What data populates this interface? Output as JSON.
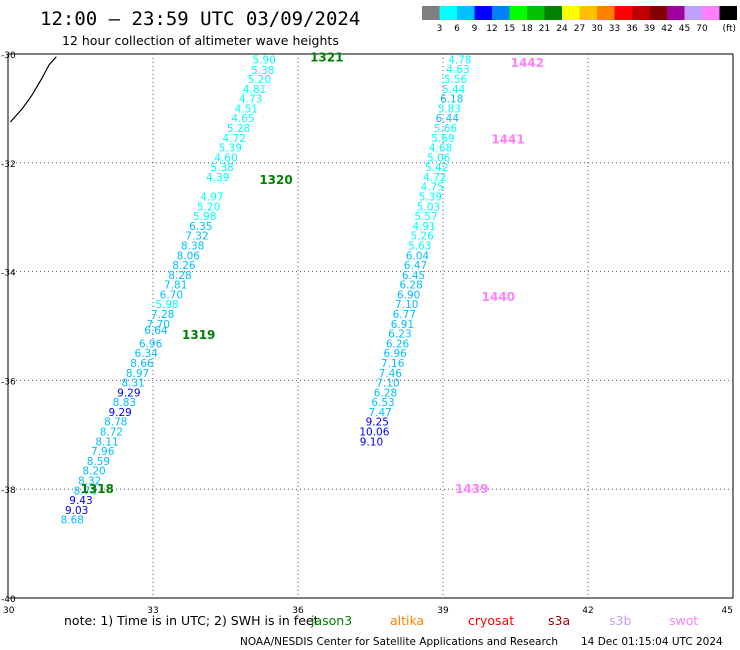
{
  "header": {
    "title": "12:00 — 23:59 UTC 03/09/2024",
    "subtitle": "12 hour collection of altimeter wave heights"
  },
  "legend": {
    "colors": [
      "#7f7f7f",
      "#00ffff",
      "#00c0ff",
      "#0000ff",
      "#0080ff",
      "#00ff00",
      "#00c000",
      "#008000",
      "#ffff00",
      "#ffc000",
      "#ff8000",
      "#ff0000",
      "#c00000",
      "#800000",
      "#a000a0",
      "#c0a0ff",
      "#ff80ff",
      "#000000"
    ],
    "labels": [
      "3",
      "6",
      "9",
      "12",
      "15",
      "18",
      "21",
      "24",
      "27",
      "30",
      "33",
      "36",
      "39",
      "42",
      "45",
      "70",
      "(ft)"
    ]
  },
  "note": "note:  1) Time is in UTC;  2) SWH is in feet",
  "satellites": [
    {
      "name": "jason3",
      "color": "#008000"
    },
    {
      "name": "altika",
      "color": "#ff8000"
    },
    {
      "name": "cryosat",
      "color": "#ff0000"
    },
    {
      "name": "s3a",
      "color": "#a00000"
    },
    {
      "name": "s3b",
      "color": "#c0a0ff"
    },
    {
      "name": "swot",
      "color": "#ff80ff"
    }
  ],
  "footer": {
    "credit": "NOAA/NESDIS Center for Satellite Applications and Research",
    "timestamp": "14 Dec 01:15:04 UTC 2024"
  },
  "chart_data": {
    "type": "scatter",
    "xlim": [
      30,
      45
    ],
    "ylim": [
      -40,
      -30
    ],
    "xticks": [
      "30",
      "33",
      "36",
      "39",
      "42",
      "45"
    ],
    "yticks": [
      "-30",
      "-32",
      "-34",
      "-36",
      "-38",
      "-40"
    ],
    "grid": true,
    "coastline": [
      [
        30.05,
        -31.25
      ],
      [
        30.3,
        -31.0
      ],
      [
        30.5,
        -30.75
      ],
      [
        30.7,
        -30.45
      ],
      [
        30.85,
        -30.2
      ],
      [
        31.0,
        -30.05
      ]
    ],
    "series": [
      {
        "name": "jason3",
        "color_values": true,
        "points": [
          {
            "lon": 35.3,
            "lat": -30.1,
            "v": "5.90"
          },
          {
            "lon": 35.27,
            "lat": -30.29,
            "v": "5.38"
          },
          {
            "lon": 35.2,
            "lat": -30.46,
            "v": "5.20"
          },
          {
            "lon": 35.1,
            "lat": -30.64,
            "v": "4.81"
          },
          {
            "lon": 35.02,
            "lat": -30.82,
            "v": "4.73"
          },
          {
            "lon": 34.93,
            "lat": -31.0,
            "v": "4.51"
          },
          {
            "lon": 34.86,
            "lat": -31.18,
            "v": "4.65"
          },
          {
            "lon": 34.77,
            "lat": -31.36,
            "v": "5.28"
          },
          {
            "lon": 34.68,
            "lat": -31.54,
            "v": "4.72"
          },
          {
            "lon": 34.6,
            "lat": -31.72,
            "v": "5.39"
          },
          {
            "lon": 34.51,
            "lat": -31.9,
            "v": "4.60"
          },
          {
            "lon": 34.43,
            "lat": -32.08,
            "v": "5.38"
          },
          {
            "lon": 34.34,
            "lat": -32.26,
            "v": "4.39"
          },
          {
            "lon": 34.22,
            "lat": -32.62,
            "v": "4.97"
          },
          {
            "lon": 34.15,
            "lat": -32.8,
            "v": "5.20"
          },
          {
            "lon": 34.07,
            "lat": -32.98,
            "v": "5.98"
          },
          {
            "lon": 33.99,
            "lat": -33.16,
            "v": "6.35"
          },
          {
            "lon": 33.91,
            "lat": -33.34,
            "v": "7.32"
          },
          {
            "lon": 33.82,
            "lat": -33.52,
            "v": "8.38"
          },
          {
            "lon": 33.73,
            "lat": -33.7,
            "v": "8.06"
          },
          {
            "lon": 33.64,
            "lat": -33.88,
            "v": "8.26"
          },
          {
            "lon": 33.56,
            "lat": -34.06,
            "v": "8.28"
          },
          {
            "lon": 33.47,
            "lat": -34.24,
            "v": "7.81"
          },
          {
            "lon": 33.38,
            "lat": -34.42,
            "v": "6.70"
          },
          {
            "lon": 33.29,
            "lat": -34.6,
            "v": "5.98"
          },
          {
            "lon": 33.2,
            "lat": -34.78,
            "v": "7.28"
          },
          {
            "lon": 33.11,
            "lat": -34.96,
            "v": "7.70"
          },
          {
            "lon": 33.06,
            "lat": -35.07,
            "v": "6.64"
          },
          {
            "lon": 32.95,
            "lat": -35.32,
            "v": "6.96"
          },
          {
            "lon": 32.86,
            "lat": -35.5,
            "v": "6.34"
          },
          {
            "lon": 32.77,
            "lat": -35.68,
            "v": "8.66"
          },
          {
            "lon": 32.68,
            "lat": -35.86,
            "v": "8.97"
          },
          {
            "lon": 32.59,
            "lat": -36.04,
            "v": "8.31"
          },
          {
            "lon": 32.5,
            "lat": -36.22,
            "v": "9.29"
          },
          {
            "lon": 32.41,
            "lat": -36.4,
            "v": "8.83"
          },
          {
            "lon": 32.32,
            "lat": -36.58,
            "v": "9.29"
          },
          {
            "lon": 32.23,
            "lat": -36.76,
            "v": "8.78"
          },
          {
            "lon": 32.14,
            "lat": -36.94,
            "v": "8.72"
          },
          {
            "lon": 32.05,
            "lat": -37.12,
            "v": "8.11"
          },
          {
            "lon": 31.96,
            "lat": -37.3,
            "v": "7.96"
          },
          {
            "lon": 31.87,
            "lat": -37.48,
            "v": "8.59"
          },
          {
            "lon": 31.78,
            "lat": -37.66,
            "v": "8.20"
          },
          {
            "lon": 31.69,
            "lat": -37.84,
            "v": "8.32"
          },
          {
            "lon": 31.6,
            "lat": -38.02,
            "v": "8.73"
          },
          {
            "lon": 31.51,
            "lat": -38.2,
            "v": "9.43"
          },
          {
            "lon": 31.42,
            "lat": -38.38,
            "v": "9.03"
          },
          {
            "lon": 31.33,
            "lat": -38.56,
            "v": "8.68"
          }
        ]
      },
      {
        "name": "swot",
        "color_values": true,
        "points": [
          {
            "lon": 39.35,
            "lat": -30.1,
            "v": "4.78"
          },
          {
            "lon": 39.31,
            "lat": -30.28,
            "v": "4.63"
          },
          {
            "lon": 39.26,
            "lat": -30.46,
            "v": "5.56"
          },
          {
            "lon": 39.22,
            "lat": -30.64,
            "v": "5.44"
          },
          {
            "lon": 39.18,
            "lat": -30.82,
            "v": "6.18"
          },
          {
            "lon": 39.13,
            "lat": -31.0,
            "v": "5.83"
          },
          {
            "lon": 39.09,
            "lat": -31.18,
            "v": "6.44"
          },
          {
            "lon": 39.05,
            "lat": -31.36,
            "v": "5.66"
          },
          {
            "lon": 39.0,
            "lat": -31.54,
            "v": "5.69"
          },
          {
            "lon": 38.95,
            "lat": -31.72,
            "v": "4.68"
          },
          {
            "lon": 38.91,
            "lat": -31.9,
            "v": "5.06"
          },
          {
            "lon": 38.87,
            "lat": -32.08,
            "v": "5.42"
          },
          {
            "lon": 38.83,
            "lat": -32.26,
            "v": "4.72"
          },
          {
            "lon": 38.78,
            "lat": -32.44,
            "v": "4.75"
          },
          {
            "lon": 38.74,
            "lat": -32.62,
            "v": "5.39"
          },
          {
            "lon": 38.7,
            "lat": -32.8,
            "v": "5.03"
          },
          {
            "lon": 38.65,
            "lat": -32.98,
            "v": "5.57"
          },
          {
            "lon": 38.61,
            "lat": -33.16,
            "v": "4.91"
          },
          {
            "lon": 38.57,
            "lat": -33.34,
            "v": "5.26"
          },
          {
            "lon": 38.52,
            "lat": -33.52,
            "v": "5.63"
          },
          {
            "lon": 38.47,
            "lat": -33.7,
            "v": "6.04"
          },
          {
            "lon": 38.43,
            "lat": -33.88,
            "v": "6.47"
          },
          {
            "lon": 38.39,
            "lat": -34.06,
            "v": "6.45"
          },
          {
            "lon": 38.34,
            "lat": -34.24,
            "v": "6.28"
          },
          {
            "lon": 38.29,
            "lat": -34.42,
            "v": "6.90"
          },
          {
            "lon": 38.25,
            "lat": -34.6,
            "v": "7.10"
          },
          {
            "lon": 38.2,
            "lat": -34.78,
            "v": "6.77"
          },
          {
            "lon": 38.16,
            "lat": -34.96,
            "v": "6.91"
          },
          {
            "lon": 38.11,
            "lat": -35.14,
            "v": "6.23"
          },
          {
            "lon": 38.06,
            "lat": -35.32,
            "v": "6.26"
          },
          {
            "lon": 38.01,
            "lat": -35.5,
            "v": "6.96"
          },
          {
            "lon": 37.96,
            "lat": -35.68,
            "v": "7.16"
          },
          {
            "lon": 37.91,
            "lat": -35.86,
            "v": "7.46"
          },
          {
            "lon": 37.86,
            "lat": -36.04,
            "v": "7.10"
          },
          {
            "lon": 37.81,
            "lat": -36.22,
            "v": "6.28"
          },
          {
            "lon": 37.76,
            "lat": -36.4,
            "v": "6.53"
          },
          {
            "lon": 37.7,
            "lat": -36.58,
            "v": "7.47"
          },
          {
            "lon": 37.64,
            "lat": -36.76,
            "v": "9.25"
          },
          {
            "lon": 37.58,
            "lat": -36.94,
            "v": "10.06"
          },
          {
            "lon": 37.52,
            "lat": -37.12,
            "v": "9.10"
          }
        ]
      }
    ],
    "pass_labels": [
      {
        "text": "1321",
        "lon": 36.25,
        "lat": -30.05,
        "color": "#008000"
      },
      {
        "text": "1320",
        "lon": 35.2,
        "lat": -32.3,
        "color": "#008000"
      },
      {
        "text": "1319",
        "lon": 33.6,
        "lat": -35.15,
        "color": "#008000"
      },
      {
        "text": "1318",
        "lon": 31.5,
        "lat": -37.98,
        "color": "#008000"
      },
      {
        "text": "1442",
        "lon": 40.4,
        "lat": -30.15,
        "color": "#ff80ff"
      },
      {
        "text": "1441",
        "lon": 40.0,
        "lat": -31.55,
        "color": "#ff80ff"
      },
      {
        "text": "1440",
        "lon": 39.8,
        "lat": -34.45,
        "color": "#ff80ff"
      },
      {
        "text": "1439",
        "lon": 39.25,
        "lat": -37.98,
        "color": "#ff80ff"
      }
    ]
  }
}
